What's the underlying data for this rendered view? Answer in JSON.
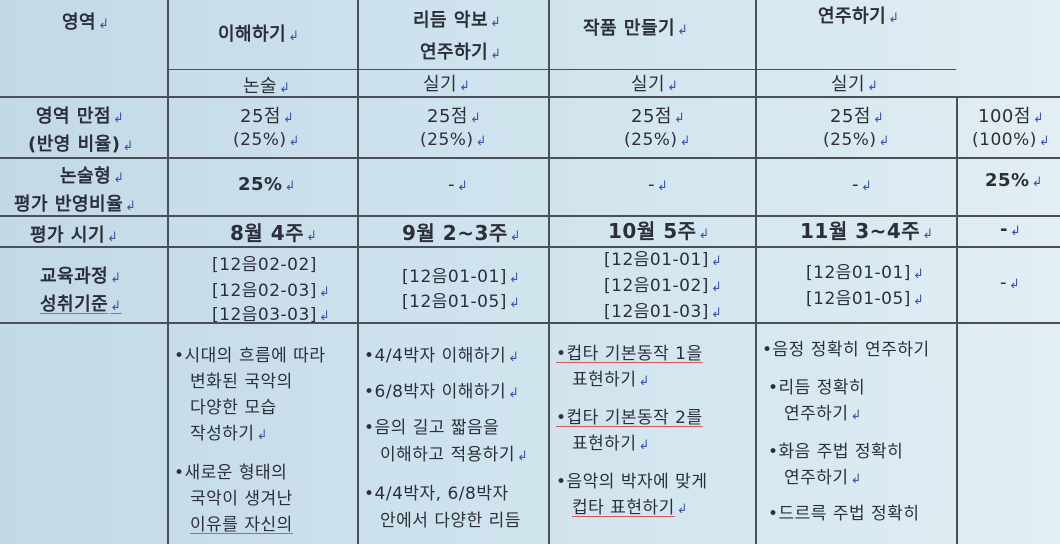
{
  "header": {
    "row_label": "영역",
    "col1_top": "이해하기",
    "col2": [
      "리듬 악보",
      "연주하기"
    ],
    "col3": "작품 만들기",
    "col4": "연주하기",
    "types": [
      "논술",
      "실기",
      "실기",
      "실기"
    ]
  },
  "rows": {
    "score": {
      "label": [
        "영역 만점",
        "(반영 비율)"
      ],
      "values": [
        [
          "25점",
          "(25%)"
        ],
        [
          "25점",
          "(25%)"
        ],
        [
          "25점",
          "(25%)"
        ],
        [
          "25점",
          "(25%)"
        ],
        [
          "100점",
          "(100%)"
        ]
      ]
    },
    "essay_ratio": {
      "label": [
        "논술형",
        "평가 반영비율"
      ],
      "values": [
        "25%",
        "-",
        "-",
        "-",
        "25%"
      ]
    },
    "timing": {
      "label": "평가 시기",
      "values": [
        "8월 4주",
        "9월 2~3주",
        "10월 5주",
        "11월 3~4주",
        "-"
      ]
    },
    "standards": {
      "label": [
        "교육과정",
        "성취기준"
      ],
      "col1": [
        "[12음02-02]",
        "[12음02-03]",
        "[12음03-03]"
      ],
      "col2": [
        "[12음01-01]",
        "[12음01-05]"
      ],
      "col3": [
        "[12음01-01]",
        "[12음01-02]",
        "[12음01-03]"
      ],
      "col4": [
        "[12음01-01]",
        "[12음01-05]"
      ],
      "col5": "-"
    },
    "criteria": {
      "col1": [
        "•시대의 흐름에 따라",
        "변화된 국악의",
        "다양한 모습",
        "작성하기",
        "•새로운 형태의",
        "국악이 생겨난",
        "이유를 자신의"
      ],
      "col2": [
        "•4/4박자 이해하기",
        "•6/8박자 이해하기",
        "•음의 길고 짧음을",
        "이해하고 적용하기",
        "•4/4박자, 6/8박자",
        "안에서 다양한 리듬"
      ],
      "col3": [
        "•컵타 기본동작 1을",
        "표현하기",
        "•컵타 기본동작 2를",
        "표현하기",
        "•음악의 박자에 맞게",
        "컵타 표현하기"
      ],
      "col4": [
        "•음정 정확히 연주하기",
        "•리듬 정확히",
        "연주하기",
        "•화음 주법 정확히",
        "연주하기",
        "•드르륵 주법 정확히"
      ]
    }
  }
}
